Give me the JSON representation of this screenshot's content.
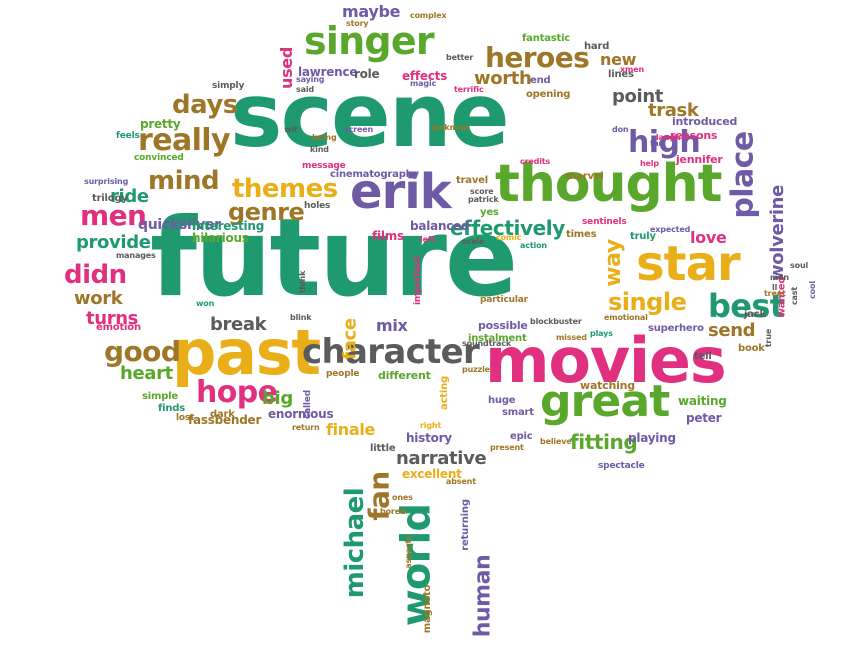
{
  "palette": {
    "green": "#1f9a6e",
    "lime": "#5aa82b",
    "purple": "#6f5aa6",
    "magenta": "#e0307f",
    "gold": "#e9ae18",
    "brown": "#9e7627",
    "gray": "#5b5b5b"
  },
  "words": [
    {
      "text": "future",
      "color": "green"
    },
    {
      "text": "scene",
      "color": "green"
    },
    {
      "text": "movies",
      "color": "magenta"
    },
    {
      "text": "past",
      "color": "gold"
    },
    {
      "text": "thought",
      "color": "lime"
    },
    {
      "text": "star",
      "color": "gold"
    },
    {
      "text": "character",
      "color": "gray"
    },
    {
      "text": "great",
      "color": "lime"
    },
    {
      "text": "erik",
      "color": "purple"
    },
    {
      "text": "world",
      "color": "green"
    },
    {
      "text": "singer",
      "color": "lime"
    },
    {
      "text": "heroes",
      "color": "brown"
    },
    {
      "text": "hope",
      "color": "magenta"
    },
    {
      "text": "best",
      "color": "green"
    },
    {
      "text": "good",
      "color": "brown"
    },
    {
      "text": "place",
      "color": "purple"
    },
    {
      "text": "really",
      "color": "brown"
    },
    {
      "text": "michael",
      "color": "green"
    },
    {
      "text": "fan",
      "color": "brown"
    },
    {
      "text": "high",
      "color": "purple"
    },
    {
      "text": "themes",
      "color": "gold"
    },
    {
      "text": "genre",
      "color": "brown"
    },
    {
      "text": "mind",
      "color": "brown"
    },
    {
      "text": "days",
      "color": "brown"
    },
    {
      "text": "men",
      "color": "magenta"
    },
    {
      "text": "didn",
      "color": "magenta"
    },
    {
      "text": "effectively",
      "color": "green"
    },
    {
      "text": "single",
      "color": "gold"
    },
    {
      "text": "narrative",
      "color": "gray"
    },
    {
      "text": "human",
      "color": "purple"
    },
    {
      "text": "way",
      "color": "gold"
    },
    {
      "text": "fitting",
      "color": "lime"
    },
    {
      "text": "provide",
      "color": "green"
    },
    {
      "text": "break",
      "color": "gray"
    },
    {
      "text": "face",
      "color": "gold"
    },
    {
      "text": "worth",
      "color": "brown"
    },
    {
      "text": "point",
      "color": "gray"
    },
    {
      "text": "trask",
      "color": "brown"
    },
    {
      "text": "wolverine",
      "color": "purple"
    },
    {
      "text": "heart",
      "color": "lime"
    },
    {
      "text": "send",
      "color": "brown"
    },
    {
      "text": "love",
      "color": "magenta"
    },
    {
      "text": "ride",
      "color": "green"
    },
    {
      "text": "work",
      "color": "brown"
    },
    {
      "text": "turns",
      "color": "magenta"
    },
    {
      "text": "big",
      "color": "lime"
    },
    {
      "text": "mix",
      "color": "purple"
    },
    {
      "text": "finale",
      "color": "gold"
    },
    {
      "text": "new",
      "color": "brown"
    },
    {
      "text": "quicksilver",
      "color": "purple"
    },
    {
      "text": "used",
      "color": "magenta"
    },
    {
      "text": "maybe",
      "color": "purple"
    },
    {
      "text": "fassbender",
      "color": "brown"
    },
    {
      "text": "enormous",
      "color": "purple"
    },
    {
      "text": "hilarious",
      "color": "lime"
    },
    {
      "text": "interesting",
      "color": "green"
    },
    {
      "text": "lawrence",
      "color": "purple"
    },
    {
      "text": "role",
      "color": "gray"
    },
    {
      "text": "effects",
      "color": "magenta"
    },
    {
      "text": "cinematography",
      "color": "purple"
    },
    {
      "text": "balanced",
      "color": "purple"
    },
    {
      "text": "films",
      "color": "magenta"
    },
    {
      "text": "history",
      "color": "purple"
    },
    {
      "text": "excellent",
      "color": "gold"
    },
    {
      "text": "magneto",
      "color": "brown"
    },
    {
      "text": "returning",
      "color": "purple"
    },
    {
      "text": "instalment",
      "color": "lime"
    },
    {
      "text": "different",
      "color": "lime"
    },
    {
      "text": "possible",
      "color": "purple"
    },
    {
      "text": "watching",
      "color": "brown"
    },
    {
      "text": "waiting",
      "color": "lime"
    },
    {
      "text": "peter",
      "color": "purple"
    },
    {
      "text": "playing",
      "color": "purple"
    },
    {
      "text": "superhero",
      "color": "purple"
    },
    {
      "text": "spectacle",
      "color": "purple"
    },
    {
      "text": "jennifer",
      "color": "magenta"
    },
    {
      "text": "introduced",
      "color": "purple"
    },
    {
      "text": "reasons",
      "color": "magenta"
    },
    {
      "text": "simple",
      "color": "lime"
    },
    {
      "text": "finds",
      "color": "green"
    },
    {
      "text": "pretty",
      "color": "lime"
    },
    {
      "text": "emotion",
      "color": "magenta"
    },
    {
      "text": "trilogy",
      "color": "gray"
    },
    {
      "text": "convinced",
      "color": "lime"
    },
    {
      "text": "feels",
      "color": "green"
    },
    {
      "text": "simply",
      "color": "gray"
    },
    {
      "text": "holes",
      "color": "gray"
    },
    {
      "text": "message",
      "color": "magenta"
    },
    {
      "text": "travel",
      "color": "brown"
    },
    {
      "text": "times",
      "color": "brown"
    },
    {
      "text": "marvel",
      "color": "brown"
    },
    {
      "text": "hard",
      "color": "gray"
    },
    {
      "text": "lines",
      "color": "gray"
    },
    {
      "text": "fantastic",
      "color": "lime"
    },
    {
      "text": "opening",
      "color": "brown"
    },
    {
      "text": "truly",
      "color": "green"
    },
    {
      "text": "jackman",
      "color": "brown"
    },
    {
      "text": "complex",
      "color": "brown"
    },
    {
      "text": "story",
      "color": "brown"
    },
    {
      "text": "better",
      "color": "gray"
    },
    {
      "text": "terrific",
      "color": "magenta"
    },
    {
      "text": "end",
      "color": "purple"
    },
    {
      "text": "xmen",
      "color": "magenta"
    },
    {
      "text": "dark",
      "color": "brown"
    },
    {
      "text": "won",
      "color": "green"
    },
    {
      "text": "lost",
      "color": "brown"
    },
    {
      "text": "people",
      "color": "brown"
    },
    {
      "text": "acting",
      "color": "gold"
    },
    {
      "text": "puzzle",
      "color": "brown"
    },
    {
      "text": "smart",
      "color": "purple"
    },
    {
      "text": "huge",
      "color": "purple"
    },
    {
      "text": "epic",
      "color": "purple"
    },
    {
      "text": "right",
      "color": "gold"
    },
    {
      "text": "little",
      "color": "gray"
    },
    {
      "text": "believe",
      "color": "brown"
    },
    {
      "text": "missed",
      "color": "brown"
    },
    {
      "text": "plays",
      "color": "green"
    },
    {
      "text": "tell",
      "color": "gray"
    },
    {
      "text": "book",
      "color": "brown"
    },
    {
      "text": "jack",
      "color": "gray"
    },
    {
      "text": "wanted",
      "color": "magenta"
    },
    {
      "text": "man",
      "color": "gray"
    },
    {
      "text": "cast",
      "color": "gray"
    },
    {
      "text": "cool",
      "color": "purple"
    },
    {
      "text": "soul",
      "color": "gray"
    },
    {
      "text": "treat",
      "color": "brown"
    },
    {
      "text": "ll",
      "color": "gray"
    },
    {
      "text": "true",
      "color": "gray"
    },
    {
      "text": "emotional",
      "color": "brown"
    },
    {
      "text": "particular",
      "color": "brown"
    },
    {
      "text": "blockbuster",
      "color": "gray"
    },
    {
      "text": "soundtrack",
      "color": "gray"
    },
    {
      "text": "important",
      "color": "magenta"
    },
    {
      "text": "think",
      "color": "gray"
    },
    {
      "text": "bored",
      "color": "brown"
    },
    {
      "text": "absent",
      "color": "brown"
    },
    {
      "text": "present",
      "color": "brown"
    },
    {
      "text": "aspects",
      "color": "brown"
    },
    {
      "text": "return",
      "color": "brown"
    },
    {
      "text": "called",
      "color": "purple"
    },
    {
      "text": "sentinels",
      "color": "magenta"
    },
    {
      "text": "expected",
      "color": "purple"
    },
    {
      "text": "credits",
      "color": "magenta"
    },
    {
      "text": "action",
      "color": "green"
    },
    {
      "text": "comic",
      "color": "gold"
    },
    {
      "text": "scale",
      "color": "gray"
    },
    {
      "text": "yes",
      "color": "lime"
    },
    {
      "text": "patrick",
      "color": "gray"
    },
    {
      "text": "score",
      "color": "gray"
    },
    {
      "text": "left",
      "color": "magenta"
    },
    {
      "text": "manages",
      "color": "gray"
    },
    {
      "text": "surprising",
      "color": "purple"
    },
    {
      "text": "screen",
      "color": "purple"
    },
    {
      "text": "saying",
      "color": "purple"
    },
    {
      "text": "said",
      "color": "gray"
    },
    {
      "text": "magic",
      "color": "purple"
    },
    {
      "text": "kind",
      "color": "gray"
    },
    {
      "text": "help",
      "color": "magenta"
    },
    {
      "text": "laugh",
      "color": "magenta"
    },
    {
      "text": "far",
      "color": "purple"
    },
    {
      "text": "don",
      "color": "purple"
    },
    {
      "text": "being",
      "color": "brown"
    },
    {
      "text": "blink",
      "color": "gray"
    },
    {
      "text": "wit",
      "color": "gray"
    },
    {
      "text": "ones",
      "color": "brown"
    }
  ]
}
